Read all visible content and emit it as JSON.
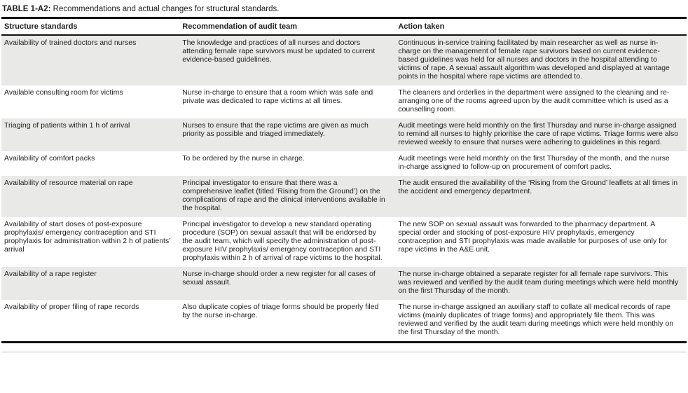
{
  "table": {
    "title_label": "TABLE 1-A2:",
    "title_text": " Recommendations and actual changes for structural standards.",
    "columns": [
      "Structure standards",
      "Recommendation of audit team",
      "Action taken"
    ],
    "rows": [
      {
        "standard": "Availability of trained doctors and nurses",
        "recommendation": "The knowledge and practices of all nurses and doctors attending female rape survivors must be updated to current evidence-based guidelines.",
        "action": "Continuous in-service training facilitated by main researcher as well as nurse in-charge on the management of female rape survivors based on current evidence-based guidelines was held for all nurses and doctors in the hospital attending to victims of rape. A sexual assault algorithm was developed and displayed at vantage points in the hospital where rape victims are attended to."
      },
      {
        "standard": "Available consulting room for victims",
        "recommendation": "Nurse in-charge to ensure that a room which was safe and private was dedicated to rape victims at all times.",
        "action": "The cleaners and orderlies in the department were assigned to the cleaning and re-arranging one of the rooms agreed upon by the audit committee which is used as a counselling room."
      },
      {
        "standard": "Triaging of patients within 1 h of arrival",
        "recommendation": "Nurses to ensure that the rape victims are given as much priority as possible and triaged immediately.",
        "action": "Audit meetings were held monthly on the first Thursday and nurse in-charge assigned to remind all nurses to highly prioritise the care of rape victims. Triage forms were also reviewed weekly to ensure that nurses were adhering to guidelines in this regard."
      },
      {
        "standard": "Availability of comfort packs",
        "recommendation": "To be ordered by the nurse in charge.",
        "action": "Audit meetings were held monthly on the first Thursday of the month, and the nurse in-charge assigned to follow-up on procurement of comfort packs."
      },
      {
        "standard": "Availability of resource material on rape",
        "recommendation": "Principal investigator to ensure that there was a comprehensive leaflet (titled ‘Rising from the Ground’) on the complications of rape and the clinical interventions available in the hospital.",
        "action": "The audit ensured the availability of the ‘Rising from the Ground’ leaflets at all times in the accident and emergency department."
      },
      {
        "standard": "Availability of start doses of post-exposure prophylaxis/ emergency contraception and STI prophylaxis for administration within 2 h of patients’ arrival",
        "recommendation": "Principal investigator to develop a new standard operating procedure (SOP) on sexual assault that will be endorsed by the audit team, which will specify the administration of post-exposure HIV prophylaxis/ emergency contraception and STI prophylaxis within 2 h of arrival of rape victims to the hospital.",
        "action": "The new SOP on sexual assault was forwarded to the pharmacy department. A special order and stocking of post-exposure HIV prophylaxis, emergency contraception and STI prophylaxis was made available for purposes of use only for rape victims in the A&E unit."
      },
      {
        "standard": "Availability of a rape register",
        "recommendation": "Nurse in-charge should order a new register for all cases of sexual assault.",
        "action": "The nurse in-charge obtained a separate register for all female rape survivors. This was reviewed and verified by the audit team during meetings which were held monthly on the first Thursday of the month."
      },
      {
        "standard": "Availability of proper filing of rape records",
        "recommendation": "Also duplicate copies of triage forms should be properly filed by the nurse in-charge.",
        "action": "The nurse in-charge assigned an auxiliary staff to collate all medical records of rape victims (mainly duplicates of triage forms) and appropriately file them. This was reviewed and verified by the audit team during meetings which were held monthly on the first Thursday of the month."
      }
    ]
  },
  "colors": {
    "row_shade": "#e9e9e8",
    "rule": "#111111",
    "text": "#1e1e1e"
  }
}
